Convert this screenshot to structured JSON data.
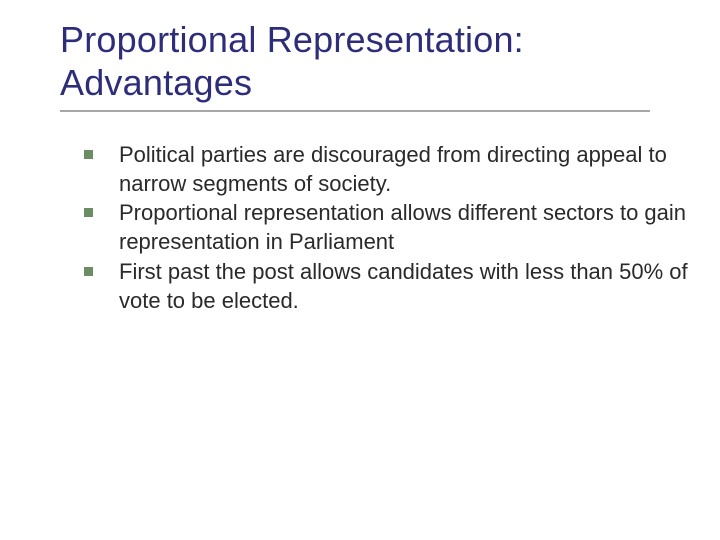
{
  "title_line1": "Proportional Representation:",
  "title_line2": "Advantages",
  "title_color": "#2d2d7a",
  "underline_color": "#a7a7a7",
  "bullet_color": "#6c8c64",
  "body_text_color": "#2a2a2a",
  "background_color": "#ffffff",
  "title_fontsize": 36,
  "body_fontsize": 22,
  "bullets": [
    "Political parties are discouraged from directing appeal to narrow segments of society.",
    "Proportional representation allows different sectors to gain representation in Parliament",
    "First past the post allows candidates with less than 50% of vote to be elected."
  ]
}
